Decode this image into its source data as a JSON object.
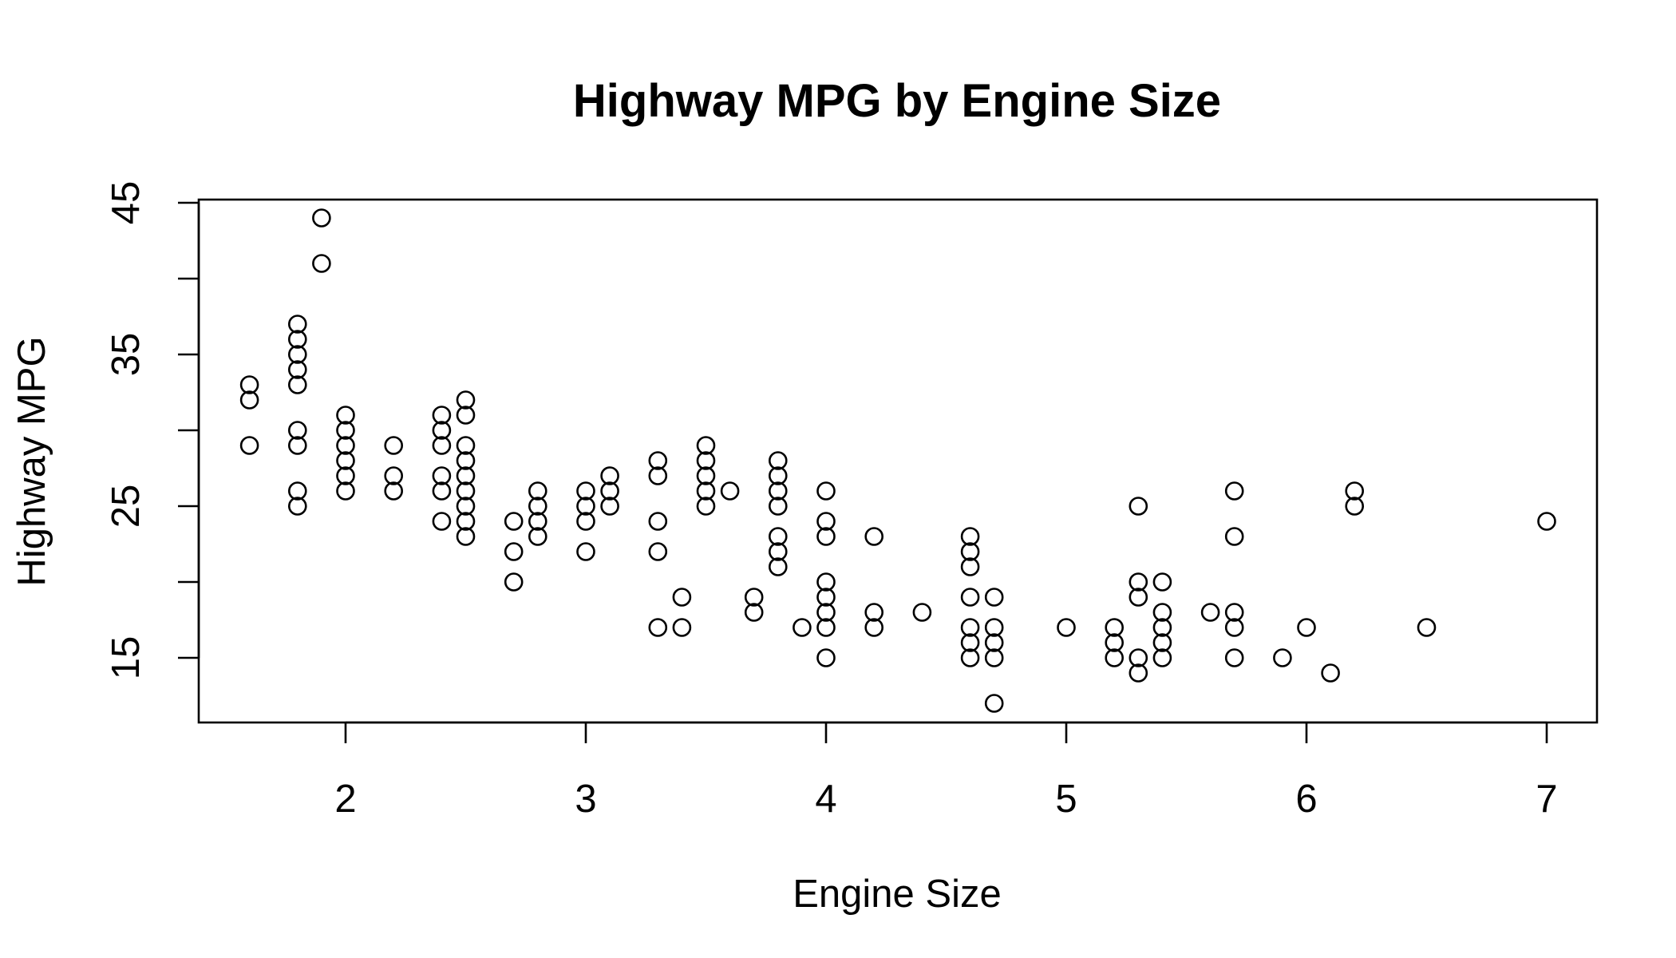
{
  "chart_data": {
    "type": "scatter",
    "title": "Highway MPG by Engine Size",
    "xlabel": "Engine Size",
    "ylabel": "Highway MPG",
    "xlim": [
      1.6,
      7.0
    ],
    "ylim": [
      12,
      44
    ],
    "x_ticks": [
      2,
      3,
      4,
      5,
      6,
      7
    ],
    "y_ticks": [
      15,
      25,
      35,
      45
    ],
    "y_minor_ticks": [
      20,
      30,
      40
    ],
    "grid": false,
    "legend": "none",
    "point_shape": "open-circle",
    "point_color": "#000000",
    "points": [
      {
        "x": 1.6,
        "y": 33
      },
      {
        "x": 1.6,
        "y": 32
      },
      {
        "x": 1.6,
        "y": 29
      },
      {
        "x": 1.8,
        "y": 37
      },
      {
        "x": 1.8,
        "y": 36
      },
      {
        "x": 1.8,
        "y": 35
      },
      {
        "x": 1.8,
        "y": 34
      },
      {
        "x": 1.8,
        "y": 33
      },
      {
        "x": 1.8,
        "y": 30
      },
      {
        "x": 1.8,
        "y": 29
      },
      {
        "x": 1.8,
        "y": 26
      },
      {
        "x": 1.8,
        "y": 25
      },
      {
        "x": 1.9,
        "y": 44
      },
      {
        "x": 1.9,
        "y": 41
      },
      {
        "x": 2.0,
        "y": 31
      },
      {
        "x": 2.0,
        "y": 30
      },
      {
        "x": 2.0,
        "y": 29
      },
      {
        "x": 2.0,
        "y": 28
      },
      {
        "x": 2.0,
        "y": 27
      },
      {
        "x": 2.0,
        "y": 26
      },
      {
        "x": 2.2,
        "y": 29
      },
      {
        "x": 2.2,
        "y": 27
      },
      {
        "x": 2.2,
        "y": 26
      },
      {
        "x": 2.4,
        "y": 31
      },
      {
        "x": 2.4,
        "y": 30
      },
      {
        "x": 2.4,
        "y": 29
      },
      {
        "x": 2.4,
        "y": 27
      },
      {
        "x": 2.4,
        "y": 26
      },
      {
        "x": 2.4,
        "y": 24
      },
      {
        "x": 2.5,
        "y": 32
      },
      {
        "x": 2.5,
        "y": 31
      },
      {
        "x": 2.5,
        "y": 29
      },
      {
        "x": 2.5,
        "y": 28
      },
      {
        "x": 2.5,
        "y": 27
      },
      {
        "x": 2.5,
        "y": 26
      },
      {
        "x": 2.5,
        "y": 25
      },
      {
        "x": 2.5,
        "y": 24
      },
      {
        "x": 2.5,
        "y": 23
      },
      {
        "x": 2.7,
        "y": 24
      },
      {
        "x": 2.7,
        "y": 22
      },
      {
        "x": 2.7,
        "y": 20
      },
      {
        "x": 2.8,
        "y": 26
      },
      {
        "x": 2.8,
        "y": 25
      },
      {
        "x": 2.8,
        "y": 24
      },
      {
        "x": 2.8,
        "y": 23
      },
      {
        "x": 3.0,
        "y": 26
      },
      {
        "x": 3.0,
        "y": 25
      },
      {
        "x": 3.0,
        "y": 24
      },
      {
        "x": 3.0,
        "y": 22
      },
      {
        "x": 3.1,
        "y": 27
      },
      {
        "x": 3.1,
        "y": 26
      },
      {
        "x": 3.1,
        "y": 25
      },
      {
        "x": 3.3,
        "y": 28
      },
      {
        "x": 3.3,
        "y": 27
      },
      {
        "x": 3.3,
        "y": 24
      },
      {
        "x": 3.3,
        "y": 22
      },
      {
        "x": 3.3,
        "y": 17
      },
      {
        "x": 3.4,
        "y": 19
      },
      {
        "x": 3.4,
        "y": 17
      },
      {
        "x": 3.5,
        "y": 29
      },
      {
        "x": 3.5,
        "y": 28
      },
      {
        "x": 3.5,
        "y": 27
      },
      {
        "x": 3.5,
        "y": 26
      },
      {
        "x": 3.5,
        "y": 25
      },
      {
        "x": 3.6,
        "y": 26
      },
      {
        "x": 3.7,
        "y": 19
      },
      {
        "x": 3.7,
        "y": 18
      },
      {
        "x": 3.8,
        "y": 28
      },
      {
        "x": 3.8,
        "y": 27
      },
      {
        "x": 3.8,
        "y": 26
      },
      {
        "x": 3.8,
        "y": 25
      },
      {
        "x": 3.8,
        "y": 23
      },
      {
        "x": 3.8,
        "y": 22
      },
      {
        "x": 3.8,
        "y": 21
      },
      {
        "x": 3.9,
        "y": 17
      },
      {
        "x": 4.0,
        "y": 26
      },
      {
        "x": 4.0,
        "y": 24
      },
      {
        "x": 4.0,
        "y": 23
      },
      {
        "x": 4.0,
        "y": 20
      },
      {
        "x": 4.0,
        "y": 19
      },
      {
        "x": 4.0,
        "y": 18
      },
      {
        "x": 4.0,
        "y": 17
      },
      {
        "x": 4.0,
        "y": 15
      },
      {
        "x": 4.2,
        "y": 23
      },
      {
        "x": 4.2,
        "y": 18
      },
      {
        "x": 4.2,
        "y": 17
      },
      {
        "x": 4.4,
        "y": 18
      },
      {
        "x": 4.6,
        "y": 23
      },
      {
        "x": 4.6,
        "y": 22
      },
      {
        "x": 4.6,
        "y": 21
      },
      {
        "x": 4.6,
        "y": 19
      },
      {
        "x": 4.6,
        "y": 17
      },
      {
        "x": 4.6,
        "y": 16
      },
      {
        "x": 4.6,
        "y": 15
      },
      {
        "x": 4.7,
        "y": 19
      },
      {
        "x": 4.7,
        "y": 17
      },
      {
        "x": 4.7,
        "y": 16
      },
      {
        "x": 4.7,
        "y": 15
      },
      {
        "x": 4.7,
        "y": 12
      },
      {
        "x": 5.0,
        "y": 17
      },
      {
        "x": 5.2,
        "y": 17
      },
      {
        "x": 5.2,
        "y": 16
      },
      {
        "x": 5.2,
        "y": 15
      },
      {
        "x": 5.3,
        "y": 25
      },
      {
        "x": 5.3,
        "y": 20
      },
      {
        "x": 5.3,
        "y": 19
      },
      {
        "x": 5.3,
        "y": 15
      },
      {
        "x": 5.3,
        "y": 14
      },
      {
        "x": 5.4,
        "y": 20
      },
      {
        "x": 5.4,
        "y": 18
      },
      {
        "x": 5.4,
        "y": 17
      },
      {
        "x": 5.4,
        "y": 16
      },
      {
        "x": 5.4,
        "y": 15
      },
      {
        "x": 5.6,
        "y": 18
      },
      {
        "x": 5.7,
        "y": 26
      },
      {
        "x": 5.7,
        "y": 23
      },
      {
        "x": 5.7,
        "y": 18
      },
      {
        "x": 5.7,
        "y": 17
      },
      {
        "x": 5.7,
        "y": 15
      },
      {
        "x": 5.9,
        "y": 15
      },
      {
        "x": 6.0,
        "y": 17
      },
      {
        "x": 6.1,
        "y": 14
      },
      {
        "x": 6.2,
        "y": 26
      },
      {
        "x": 6.2,
        "y": 25
      },
      {
        "x": 6.5,
        "y": 17
      },
      {
        "x": 7.0,
        "y": 24
      }
    ]
  }
}
